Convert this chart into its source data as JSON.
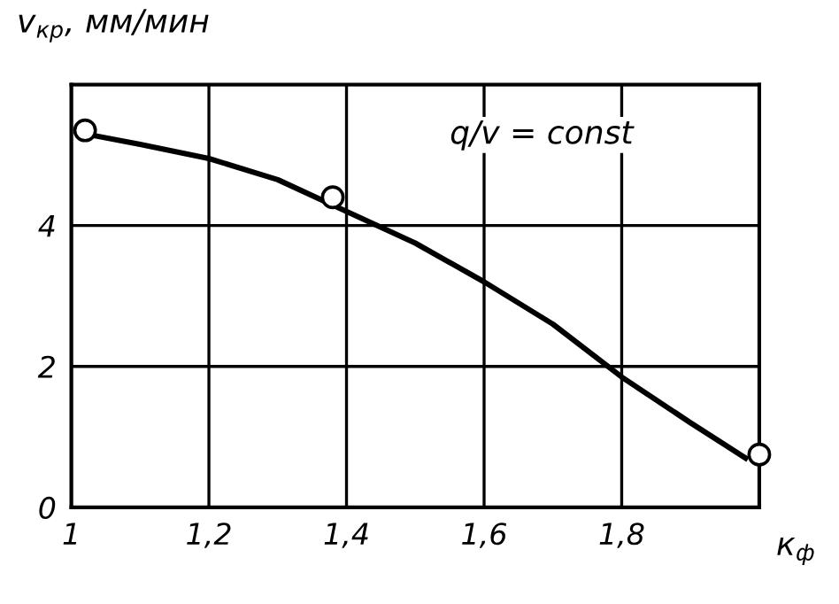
{
  "chart_data": {
    "type": "line",
    "xlabel": "к$_{ф}$",
    "ylabel": "v$_{кр}$, мм/мин",
    "annotations": [
      "q/v = const"
    ],
    "series": [
      {
        "color": "#000000",
        "marker": "none",
        "x": [
          1.02,
          1.1,
          1.2,
          1.3,
          1.4,
          1.5,
          1.6,
          1.7,
          1.8,
          1.9,
          1.98
        ],
        "values": [
          5.3,
          5.15,
          4.95,
          4.65,
          4.2,
          3.75,
          3.2,
          2.6,
          1.85,
          1.2,
          0.7
        ]
      },
      {
        "type": "scatter",
        "color": "#000000",
        "marker": "circle",
        "x": [
          1.02,
          1.38,
          2.0
        ],
        "values": [
          5.35,
          4.4,
          0.75
        ]
      }
    ],
    "xlim": [
      1,
      2.0
    ],
    "ylim": [
      0,
      6
    ],
    "xticks": [
      1,
      {
        "value": 1.2,
        "label": "1,2"
      },
      {
        "value": 1.4,
        "label": "1,4"
      },
      {
        "value": 1.6,
        "label": "1,6"
      },
      {
        "value": 1.8,
        "label": "1,8"
      }
    ],
    "yticks": [
      0,
      2,
      4,
      {
        "value": 6,
        "label": null
      }
    ],
    "grid": true
  }
}
